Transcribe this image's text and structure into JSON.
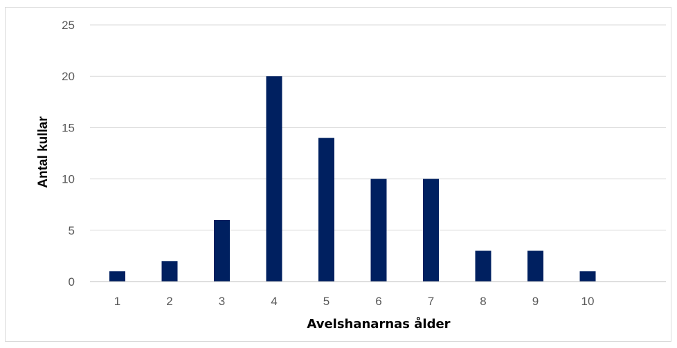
{
  "chart_data": {
    "type": "bar",
    "categories": [
      "1",
      "2",
      "3",
      "4",
      "5",
      "6",
      "7",
      "8",
      "9",
      "10"
    ],
    "values": [
      1,
      2,
      6,
      20,
      14,
      10,
      10,
      3,
      3,
      1
    ],
    "title": "",
    "xlabel": "Avelshanarnas ålder",
    "ylabel": "Antal kullar",
    "ylim": [
      0,
      25
    ],
    "yticks": [
      "0",
      "5",
      "10",
      "15",
      "20",
      "25"
    ],
    "grid": true,
    "legend": "none",
    "bar_color": "#002060",
    "grid_color": "#d9d9d9",
    "axis_color": "#bfbfbf"
  }
}
